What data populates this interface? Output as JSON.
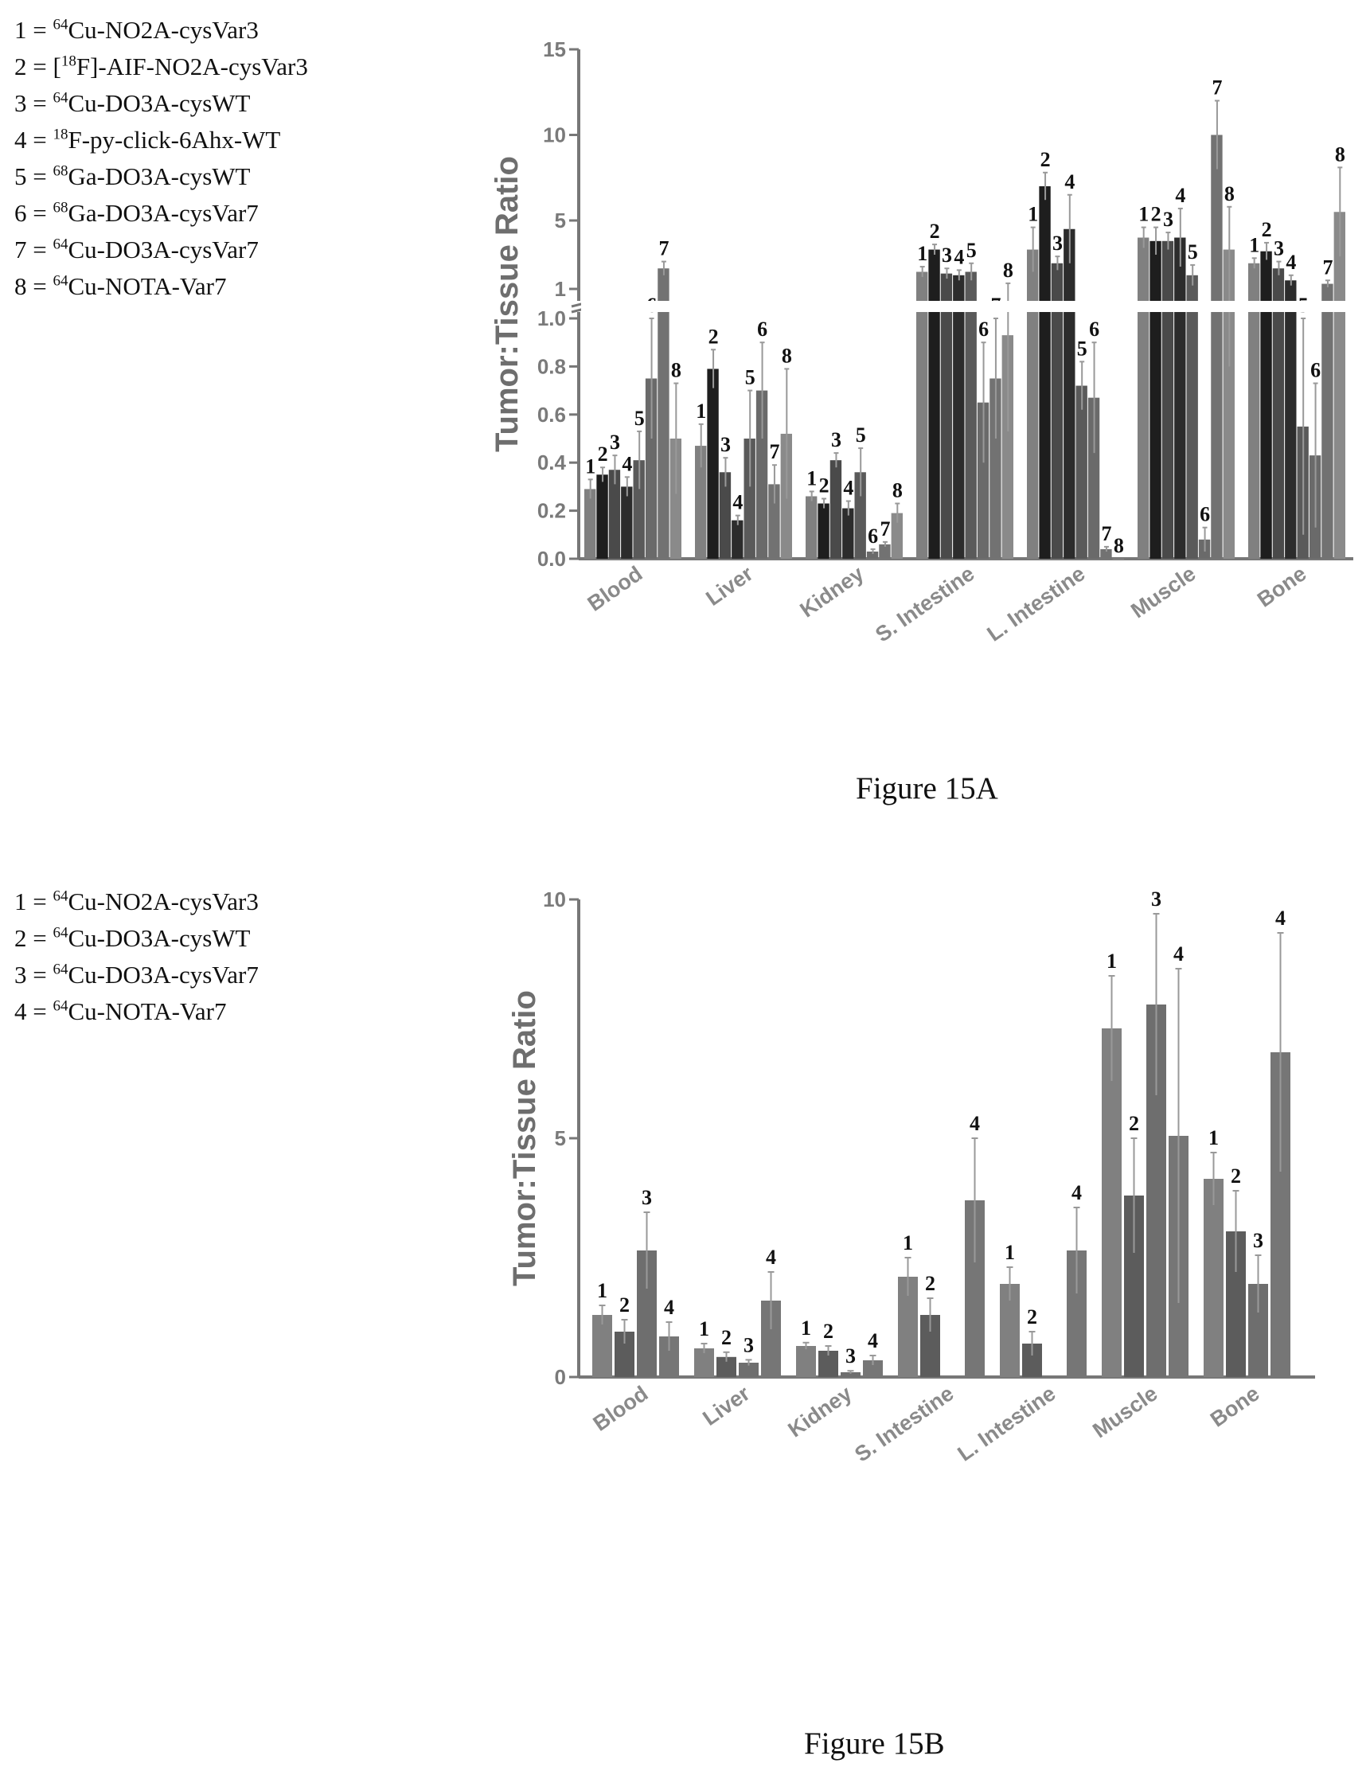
{
  "figures": [
    {
      "id": "15A",
      "caption": "Figure 15A",
      "legend": [
        {
          "index": "1",
          "prefix_sup": "64",
          "rest": "Cu-NO2A-cysVar3"
        },
        {
          "index": "2",
          "prefix": "[",
          "prefix_sup": "18",
          "rest": "F]-AIF-NO2A-cysVar3"
        },
        {
          "index": "3",
          "prefix_sup": "64",
          "rest": "Cu-DO3A-cysWT"
        },
        {
          "index": "4",
          "prefix_sup": "18",
          "rest": "F-py-click-6Ahx-WT"
        },
        {
          "index": "5",
          "prefix_sup": "68",
          "rest": "Ga-DO3A-cysWT"
        },
        {
          "index": "6",
          "prefix_sup": "68",
          "rest": "Ga-DO3A-cysVar7"
        },
        {
          "index": "7",
          "prefix_sup": "64",
          "rest": "Cu-DO3A-cysVar7"
        },
        {
          "index": "8",
          "prefix_sup": "64",
          "rest": "Cu-NOTA-Var7"
        }
      ]
    },
    {
      "id": "15B",
      "caption": "Figure 15B",
      "legend": [
        {
          "index": "1",
          "prefix_sup": "64",
          "rest": "Cu-NO2A-cysVar3"
        },
        {
          "index": "2",
          "prefix_sup": "64",
          "rest": "Cu-DO3A-cysWT"
        },
        {
          "index": "3",
          "prefix_sup": "64",
          "rest": "Cu-DO3A-cysVar7"
        },
        {
          "index": "4",
          "prefix_sup": "64",
          "rest": "Cu-NOTA-Var7"
        }
      ]
    }
  ],
  "chart_data": [
    {
      "type": "bar",
      "title": "",
      "ylabel": "Tumor:Tissue Ratio",
      "xlabel": "",
      "broken_axis": true,
      "lower_ylim": [
        0,
        1.0
      ],
      "lower_yticks": [
        "0.0",
        "0.2",
        "0.4",
        "0.6",
        "0.8",
        "1.0"
      ],
      "upper_ylim": [
        1,
        15
      ],
      "upper_yticks": [
        "1",
        "5",
        "10",
        "15"
      ],
      "categories": [
        "Blood",
        "Liver",
        "Kidney",
        "S. Intestine",
        "L. Intestine",
        "Muscle",
        "Bone"
      ],
      "series_labels": [
        "1",
        "2",
        "3",
        "4",
        "5",
        "6",
        "7",
        "8"
      ],
      "series_colors": [
        "#808080",
        "#1e1e1e",
        "#4a4a4a",
        "#2c2c2c",
        "#5a5a5a",
        "#6a6a6a",
        "#727272",
        "#8a8a8a"
      ],
      "values": [
        [
          0.29,
          0.35,
          0.37,
          0.3,
          0.41,
          0.75,
          2.2,
          0.5
        ],
        [
          0.47,
          0.79,
          0.36,
          0.16,
          0.5,
          0.7,
          0.31,
          0.52
        ],
        [
          0.26,
          0.23,
          0.41,
          0.21,
          0.36,
          0.03,
          0.06,
          0.19
        ],
        [
          2.0,
          3.3,
          1.9,
          1.8,
          2.0,
          0.65,
          0.75,
          0.93
        ],
        [
          3.3,
          7.0,
          2.5,
          4.5,
          0.72,
          0.67,
          0.04,
          0.0
        ],
        [
          4.0,
          3.8,
          3.8,
          4.0,
          1.8,
          0.08,
          10.0,
          3.3
        ],
        [
          2.5,
          3.2,
          2.2,
          1.5,
          0.55,
          0.43,
          1.3,
          5.5
        ]
      ],
      "errors": [
        [
          0.04,
          0.03,
          0.06,
          0.04,
          0.12,
          0.25,
          0.4,
          0.23
        ],
        [
          0.09,
          0.08,
          0.06,
          0.02,
          0.2,
          0.2,
          0.08,
          0.27
        ],
        [
          0.02,
          0.02,
          0.03,
          0.03,
          0.1,
          0.01,
          0.01,
          0.04
        ],
        [
          0.3,
          0.3,
          0.3,
          0.3,
          0.5,
          0.25,
          0.25,
          0.4
        ],
        [
          1.3,
          0.8,
          0.4,
          2.0,
          0.1,
          0.23,
          0.01,
          0.0
        ],
        [
          0.6,
          0.8,
          0.5,
          1.7,
          0.6,
          0.05,
          2.0,
          2.5
        ],
        [
          0.3,
          0.5,
          0.4,
          0.3,
          0.45,
          0.3,
          0.2,
          2.6
        ]
      ]
    },
    {
      "type": "bar",
      "title": "",
      "ylabel": "Tumor:Tissue Ratio",
      "xlabel": "",
      "ylim": [
        0,
        10
      ],
      "yticks": [
        "0",
        "5",
        "10"
      ],
      "categories": [
        "Blood",
        "Liver",
        "Kidney",
        "S. Intestine",
        "L. Intestine",
        "Muscle",
        "Bone"
      ],
      "series_labels": [
        "1",
        "2",
        "3",
        "4"
      ],
      "series_colors": [
        "#808080",
        "#5c5c5c",
        "#6e6e6e",
        "#767676"
      ],
      "values": [
        [
          1.3,
          0.95,
          2.65,
          0.85
        ],
        [
          0.6,
          0.42,
          0.3,
          1.6
        ],
        [
          0.65,
          0.55,
          0.1,
          0.35
        ],
        [
          2.1,
          1.3,
          null,
          3.7
        ],
        [
          1.95,
          0.7,
          null,
          2.65
        ],
        [
          7.3,
          3.8,
          7.8,
          5.05
        ],
        [
          4.15,
          3.05,
          1.95,
          6.8
        ]
      ],
      "errors": [
        [
          0.2,
          0.25,
          0.8,
          0.3
        ],
        [
          0.1,
          0.1,
          0.06,
          0.6
        ],
        [
          0.07,
          0.1,
          0.03,
          0.1
        ],
        [
          0.4,
          0.35,
          0,
          1.3
        ],
        [
          0.35,
          0.25,
          0,
          0.9
        ],
        [
          1.1,
          1.2,
          1.9,
          3.5
        ],
        [
          0.55,
          0.85,
          0.6,
          2.5
        ]
      ]
    }
  ]
}
